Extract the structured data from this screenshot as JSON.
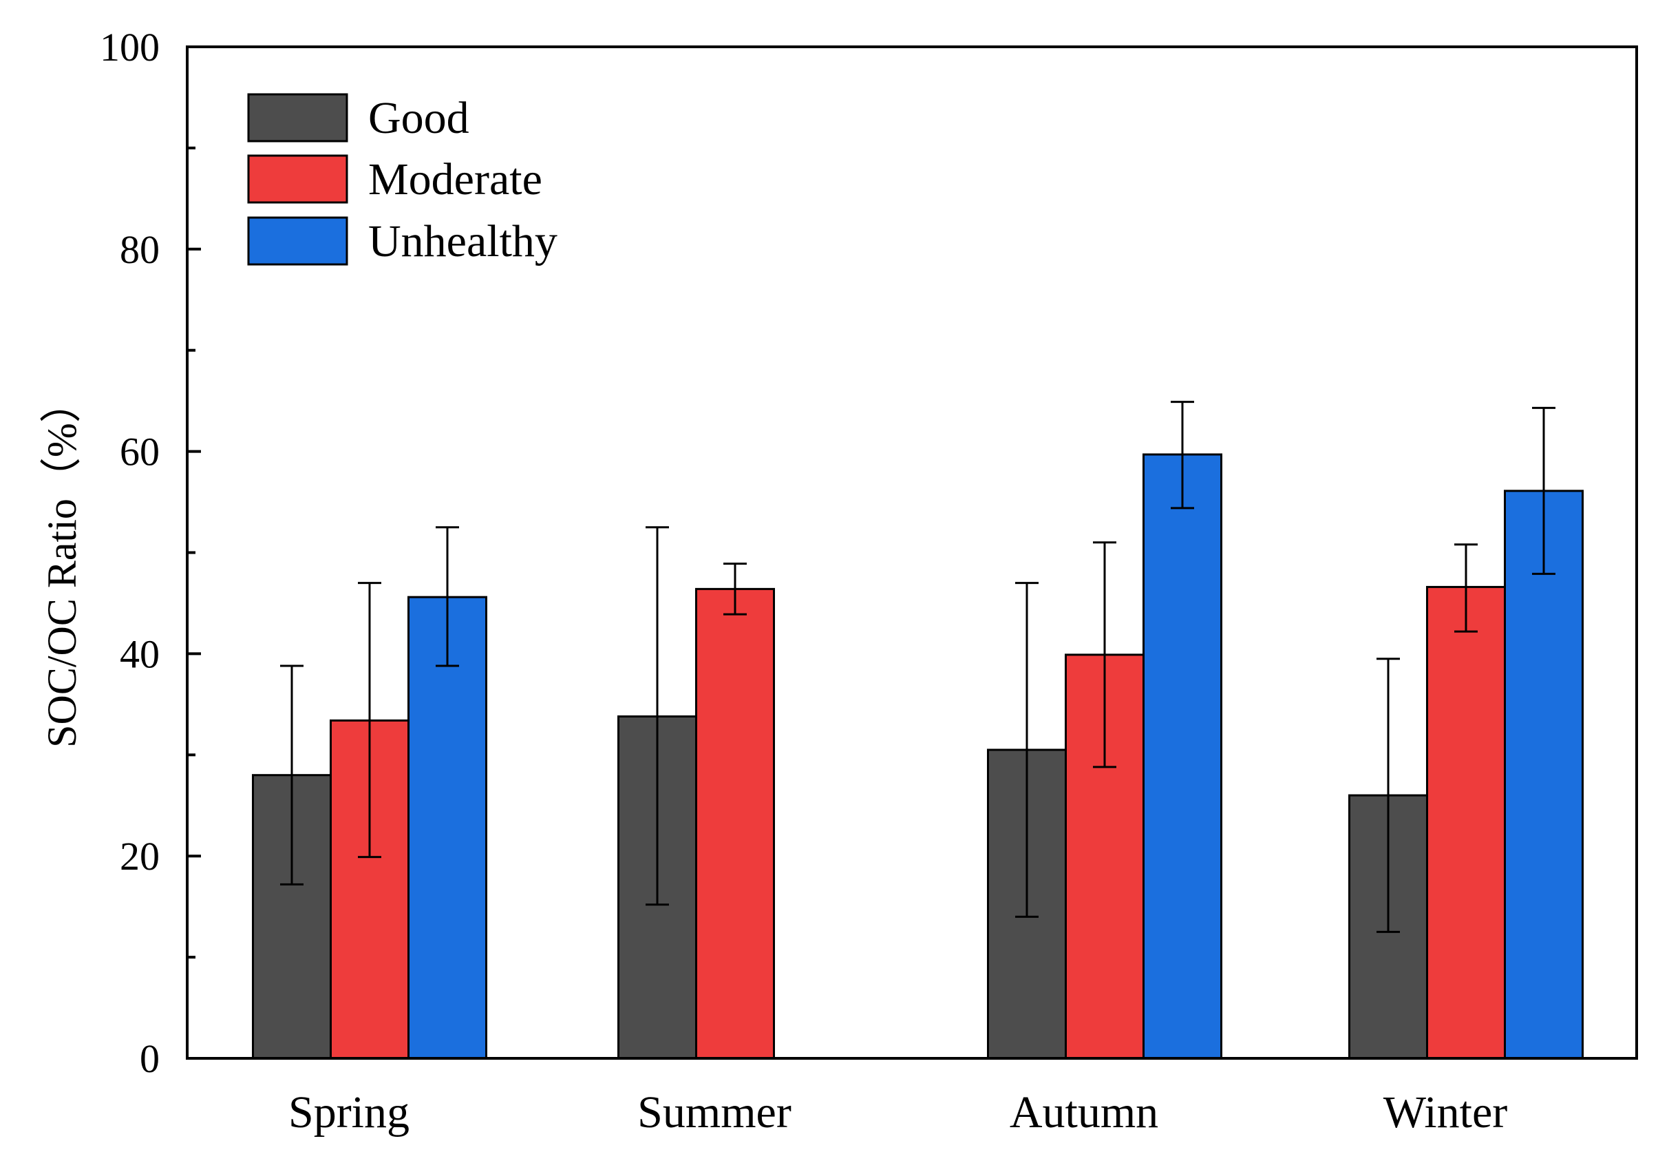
{
  "chart_data": {
    "type": "bar",
    "title": "",
    "xlabel": "",
    "ylabel": "SOC/OC Ratio（%）",
    "ylim": [
      0,
      100
    ],
    "yticks": [
      0,
      20,
      40,
      60,
      80,
      100
    ],
    "yticks_minor": [
      10,
      30,
      50,
      70,
      90
    ],
    "categories": [
      "Spring",
      "Summer",
      "Autumn",
      "Winter"
    ],
    "legend_position": "top-left",
    "series": [
      {
        "name": "Good",
        "color": "#4d4d4d",
        "values": [
          28.0,
          33.8,
          30.5,
          26.0
        ],
        "err_low": [
          17.2,
          15.2,
          14.0,
          12.5
        ],
        "err_high": [
          38.8,
          52.5,
          47.0,
          39.5
        ]
      },
      {
        "name": "Moderate",
        "color": "#ee3c3c",
        "values": [
          33.4,
          46.4,
          39.9,
          46.6
        ],
        "err_low": [
          19.9,
          43.9,
          28.8,
          42.2
        ],
        "err_high": [
          47.0,
          48.9,
          51.0,
          50.8
        ]
      },
      {
        "name": "Unhealthy",
        "color": "#1b6fde",
        "values": [
          45.6,
          null,
          59.7,
          56.1
        ],
        "err_low": [
          38.8,
          null,
          54.4,
          47.9
        ],
        "err_high": [
          52.5,
          null,
          64.9,
          64.3
        ]
      }
    ]
  }
}
